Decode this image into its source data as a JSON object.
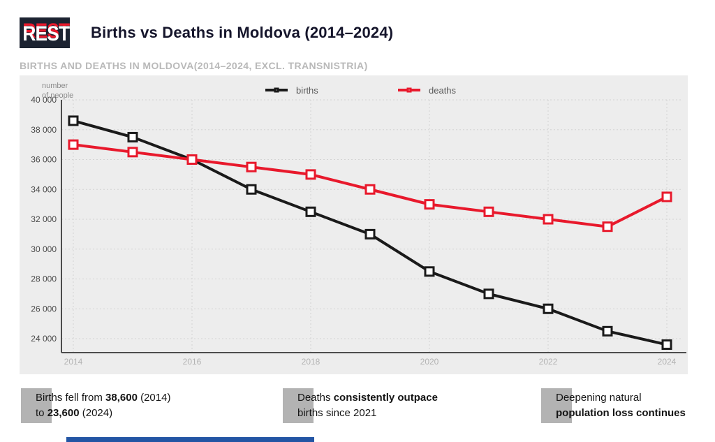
{
  "header": {
    "logo_text": "REST",
    "title": "Births vs Deaths in Moldova (2014–2024)"
  },
  "chart_data": {
    "type": "line",
    "title": "BIRTHS AND DEATHS IN MOLDOVA(2014–2024, EXCL. TRANSNISTRIA)",
    "xlabel": "",
    "ylabel": "number\nof people",
    "x": [
      2014,
      2015,
      2016,
      2017,
      2018,
      2019,
      2020,
      2021,
      2022,
      2023,
      2024
    ],
    "xticks": [
      2014,
      2016,
      2018,
      2020,
      2022,
      2024
    ],
    "yticks": [
      40000,
      38000,
      36000,
      34000,
      32000,
      30000,
      28000,
      26000,
      24000
    ],
    "ytick_labels": [
      "40 000",
      "38 000",
      "36 000",
      "34 000",
      "32 000",
      "30 000",
      "28 000",
      "26 000",
      "24 000"
    ],
    "ylim": [
      24000,
      40000
    ],
    "grid": true,
    "legend_position": "top",
    "series": [
      {
        "name": "births",
        "color": "#1a1a1a",
        "values": [
          38600,
          37500,
          36000,
          34000,
          32500,
          31000,
          28500,
          27000,
          26000,
          24500,
          23600
        ]
      },
      {
        "name": "deaths",
        "color": "#e8192c",
        "values": [
          37000,
          36500,
          36000,
          35500,
          35000,
          34000,
          33000,
          32500,
          32000,
          31500,
          33500
        ]
      }
    ]
  },
  "annotations": [
    {
      "segments": [
        {
          "text": "Births fell from ",
          "bold": false
        },
        {
          "text": "38,600",
          "bold": true
        },
        {
          "text": " (2014)\nto ",
          "bold": false
        },
        {
          "text": "23,600",
          "bold": true
        },
        {
          "text": " (2024)",
          "bold": false
        }
      ]
    },
    {
      "segments": [
        {
          "text": "Deaths ",
          "bold": false
        },
        {
          "text": "consistently outpace",
          "bold": true
        },
        {
          "text": "\nbirths since 2021",
          "bold": false
        }
      ]
    },
    {
      "segments": [
        {
          "text": "Deepening natural\n",
          "bold": false
        },
        {
          "text": "population loss continues",
          "bold": true
        }
      ]
    }
  ],
  "colors": {
    "logo_bg": "#1c2331",
    "accent_red": "#e8192c",
    "panel_bg": "#ededed",
    "grid": "#d4d4d4",
    "axis": "#4d4d4d",
    "xtick_text": "#b3b3b3",
    "ytick_text": "#4a4a4a",
    "footer_bar": "#2355a4"
  }
}
